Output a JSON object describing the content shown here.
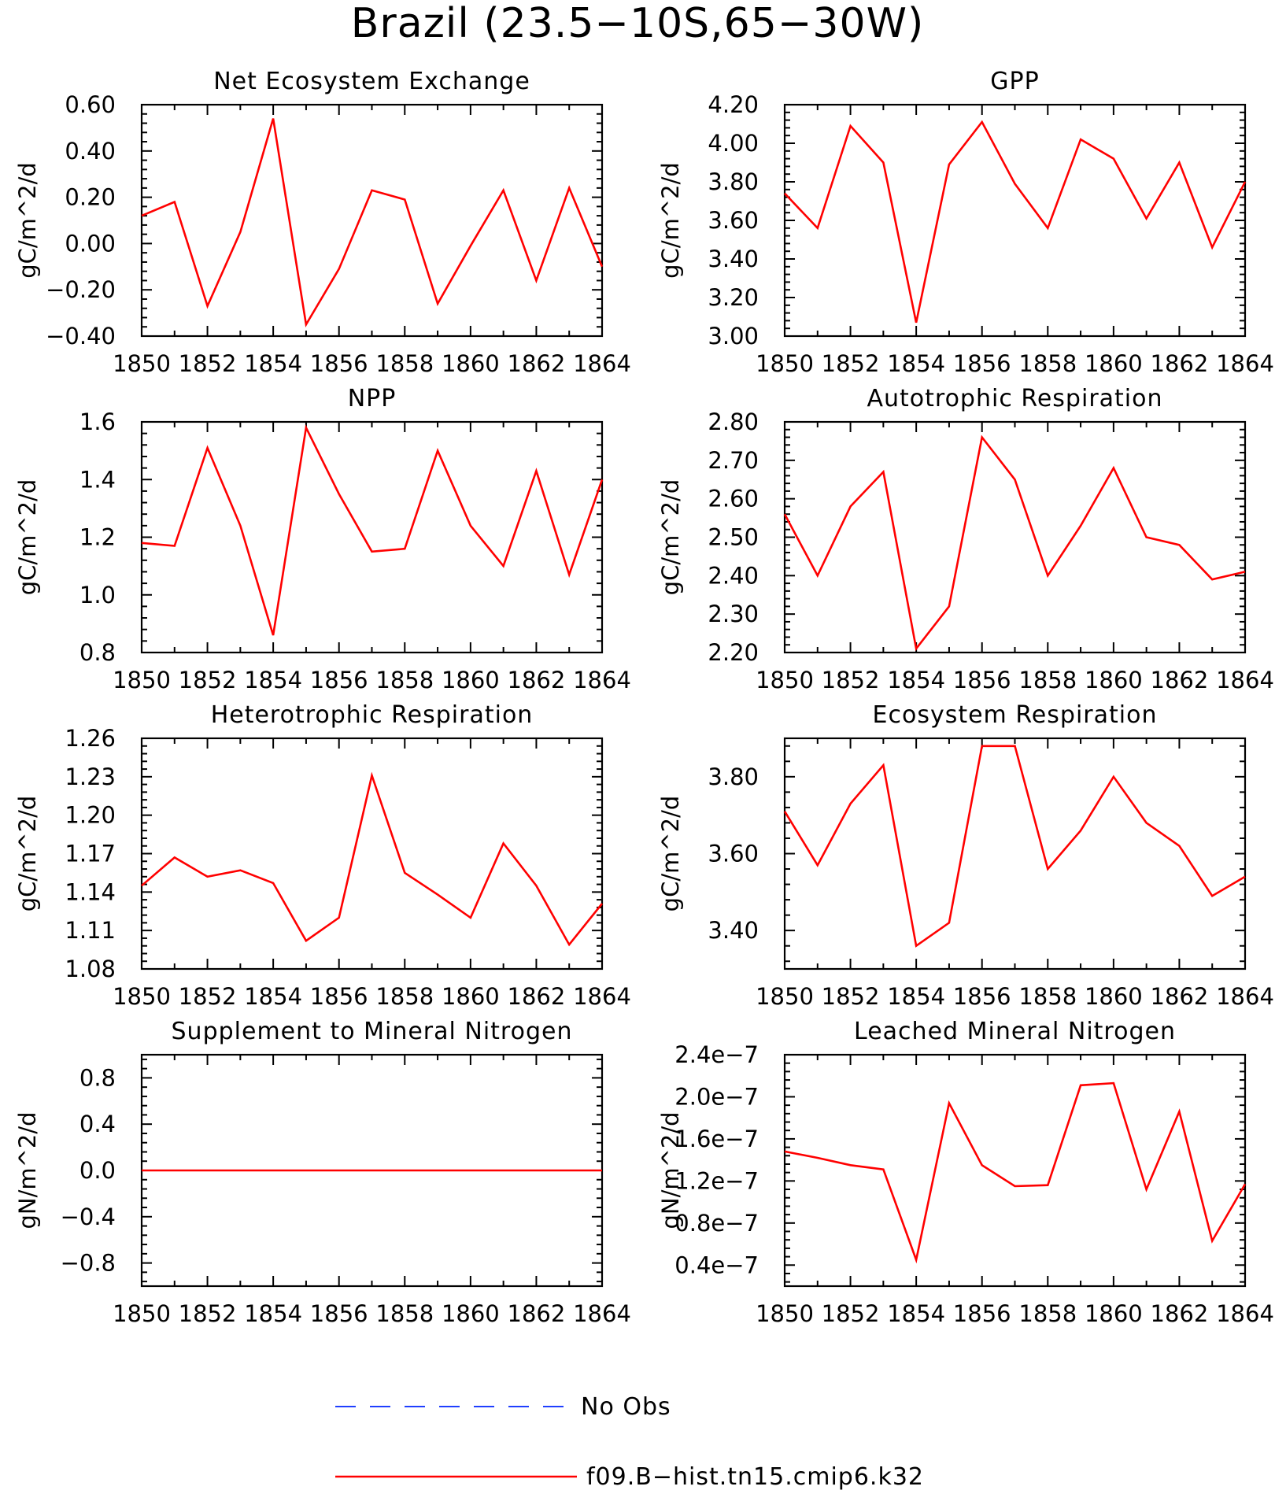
{
  "title": "Brazil (23.5−10S,65−30W)",
  "legend": {
    "obs_label": "No Obs",
    "model_label": "f09.B−hist.tn15.cmip6.k32",
    "obs_color": "#1f3fff",
    "model_color": "#ff0000"
  },
  "chart_data": [
    {
      "type": "line",
      "title": "Net Ecosystem Exchange",
      "ylabel": "gC/m^2/d",
      "x": [
        1850,
        1851,
        1852,
        1853,
        1854,
        1855,
        1856,
        1857,
        1858,
        1859,
        1860,
        1861,
        1862,
        1863,
        1864
      ],
      "series": [
        {
          "name": "f09.B−hist.tn15.cmip6.k32",
          "values": [
            0.12,
            0.18,
            -0.27,
            0.05,
            0.54,
            -0.35,
            -0.11,
            0.23,
            0.19,
            -0.26,
            -0.01,
            0.23,
            -0.16,
            0.24,
            -0.1
          ]
        }
      ],
      "xlim": [
        1850,
        1864
      ],
      "ylim": [
        -0.4,
        0.6
      ],
      "xticks": [
        "1850",
        "1852",
        "1854",
        "1856",
        "1858",
        "1860",
        "1862",
        "1864"
      ],
      "yticks": [
        "−0.40",
        "−0.20",
        "0.00",
        "0.20",
        "0.40",
        "0.60"
      ],
      "ytick_values": [
        -0.4,
        -0.2,
        0.0,
        0.2,
        0.4,
        0.6
      ]
    },
    {
      "type": "line",
      "title": "GPP",
      "ylabel": "gC/m^2/d",
      "x": [
        1850,
        1851,
        1852,
        1853,
        1854,
        1855,
        1856,
        1857,
        1858,
        1859,
        1860,
        1861,
        1862,
        1863,
        1864
      ],
      "series": [
        {
          "name": "f09.B−hist.tn15.cmip6.k32",
          "values": [
            3.74,
            3.56,
            4.09,
            3.9,
            3.07,
            3.89,
            4.11,
            3.79,
            3.56,
            4.02,
            3.92,
            3.61,
            3.9,
            3.46,
            3.8
          ]
        }
      ],
      "xlim": [
        1850,
        1864
      ],
      "ylim": [
        3.0,
        4.2
      ],
      "xticks": [
        "1850",
        "1852",
        "1854",
        "1856",
        "1858",
        "1860",
        "1862",
        "1864"
      ],
      "yticks": [
        "3.00",
        "3.20",
        "3.40",
        "3.60",
        "3.80",
        "4.00",
        "4.20"
      ],
      "ytick_values": [
        3.0,
        3.2,
        3.4,
        3.6,
        3.8,
        4.0,
        4.2
      ]
    },
    {
      "type": "line",
      "title": "NPP",
      "ylabel": "gC/m^2/d",
      "x": [
        1850,
        1851,
        1852,
        1853,
        1854,
        1855,
        1856,
        1857,
        1858,
        1859,
        1860,
        1861,
        1862,
        1863,
        1864
      ],
      "series": [
        {
          "name": "f09.B−hist.tn15.cmip6.k32",
          "values": [
            1.18,
            1.17,
            1.51,
            1.24,
            0.86,
            1.58,
            1.35,
            1.15,
            1.16,
            1.5,
            1.24,
            1.1,
            1.43,
            1.07,
            1.4
          ]
        }
      ],
      "xlim": [
        1850,
        1864
      ],
      "ylim": [
        0.8,
        1.6
      ],
      "xticks": [
        "1850",
        "1852",
        "1854",
        "1856",
        "1858",
        "1860",
        "1862",
        "1864"
      ],
      "yticks": [
        "0.8",
        "1.0",
        "1.2",
        "1.4",
        "1.6"
      ],
      "ytick_values": [
        0.8,
        1.0,
        1.2,
        1.4,
        1.6
      ]
    },
    {
      "type": "line",
      "title": "Autotrophic Respiration",
      "ylabel": "gC/m^2/d",
      "x": [
        1850,
        1851,
        1852,
        1853,
        1854,
        1855,
        1856,
        1857,
        1858,
        1859,
        1860,
        1861,
        1862,
        1863,
        1864
      ],
      "series": [
        {
          "name": "f09.B−hist.tn15.cmip6.k32",
          "values": [
            2.56,
            2.4,
            2.58,
            2.67,
            2.21,
            2.32,
            2.76,
            2.65,
            2.4,
            2.53,
            2.68,
            2.5,
            2.48,
            2.39,
            2.41
          ]
        }
      ],
      "xlim": [
        1850,
        1864
      ],
      "ylim": [
        2.2,
        2.8
      ],
      "xticks": [
        "1850",
        "1852",
        "1854",
        "1856",
        "1858",
        "1860",
        "1862",
        "1864"
      ],
      "yticks": [
        "2.20",
        "2.30",
        "2.40",
        "2.50",
        "2.60",
        "2.70",
        "2.80"
      ],
      "ytick_values": [
        2.2,
        2.3,
        2.4,
        2.5,
        2.6,
        2.7,
        2.8
      ]
    },
    {
      "type": "line",
      "title": "Heterotrophic Respiration",
      "ylabel": "gC/m^2/d",
      "x": [
        1850,
        1851,
        1852,
        1853,
        1854,
        1855,
        1856,
        1857,
        1858,
        1859,
        1860,
        1861,
        1862,
        1863,
        1864
      ],
      "series": [
        {
          "name": "f09.B−hist.tn15.cmip6.k32",
          "values": [
            1.145,
            1.167,
            1.152,
            1.157,
            1.147,
            1.102,
            1.12,
            1.231,
            1.155,
            1.138,
            1.12,
            1.178,
            1.145,
            1.099,
            1.131
          ]
        }
      ],
      "xlim": [
        1850,
        1864
      ],
      "ylim": [
        1.08,
        1.26
      ],
      "xticks": [
        "1850",
        "1852",
        "1854",
        "1856",
        "1858",
        "1860",
        "1862",
        "1864"
      ],
      "yticks": [
        "1.08",
        "1.11",
        "1.14",
        "1.17",
        "1.20",
        "1.23",
        "1.26"
      ],
      "ytick_values": [
        1.08,
        1.11,
        1.14,
        1.17,
        1.2,
        1.23,
        1.26
      ]
    },
    {
      "type": "line",
      "title": "Ecosystem Respiration",
      "ylabel": "gC/m^2/d",
      "x": [
        1850,
        1851,
        1852,
        1853,
        1854,
        1855,
        1856,
        1857,
        1858,
        1859,
        1860,
        1861,
        1862,
        1863,
        1864
      ],
      "series": [
        {
          "name": "f09.B−hist.tn15.cmip6.k32",
          "values": [
            3.71,
            3.57,
            3.73,
            3.83,
            3.36,
            3.42,
            3.88,
            3.88,
            3.56,
            3.66,
            3.8,
            3.68,
            3.62,
            3.49,
            3.54
          ]
        }
      ],
      "xlim": [
        1850,
        1864
      ],
      "ylim": [
        3.3,
        3.9
      ],
      "xticks": [
        "1850",
        "1852",
        "1854",
        "1856",
        "1858",
        "1860",
        "1862",
        "1864"
      ],
      "yticks": [
        "3.40",
        "3.60",
        "3.80"
      ],
      "ytick_values": [
        3.4,
        3.6,
        3.8
      ]
    },
    {
      "type": "line",
      "title": "Supplement to Mineral Nitrogen",
      "ylabel": "gN/m^2/d",
      "x": [
        1850,
        1851,
        1852,
        1853,
        1854,
        1855,
        1856,
        1857,
        1858,
        1859,
        1860,
        1861,
        1862,
        1863,
        1864
      ],
      "series": [
        {
          "name": "f09.B−hist.tn15.cmip6.k32",
          "values": [
            0,
            0,
            0,
            0,
            0,
            0,
            0,
            0,
            0,
            0,
            0,
            0,
            0,
            0,
            0
          ]
        }
      ],
      "xlim": [
        1850,
        1864
      ],
      "ylim": [
        -1.0,
        1.0
      ],
      "xticks": [
        "1850",
        "1852",
        "1854",
        "1856",
        "1858",
        "1860",
        "1862",
        "1864"
      ],
      "yticks": [
        "−0.8",
        "−0.4",
        "0.0",
        "0.4",
        "0.8"
      ],
      "ytick_values": [
        -0.8,
        -0.4,
        0.0,
        0.4,
        0.8
      ]
    },
    {
      "type": "line",
      "title": "Leached Mineral Nitrogen",
      "ylabel": "gN/m^2/d",
      "x": [
        1850,
        1851,
        1852,
        1853,
        1854,
        1855,
        1856,
        1857,
        1858,
        1859,
        1860,
        1861,
        1862,
        1863,
        1864
      ],
      "series": [
        {
          "name": "f09.B−hist.tn15.cmip6.k32",
          "values": [
            1.48e-07,
            1.42e-07,
            1.35e-07,
            1.31e-07,
            4.5e-08,
            1.94e-07,
            1.35e-07,
            1.15e-07,
            1.16e-07,
            2.11e-07,
            2.13e-07,
            1.12e-07,
            1.86e-07,
            6.3e-08,
            1.17e-07
          ]
        }
      ],
      "xlim": [
        1850,
        1864
      ],
      "ylim": [
        2e-08,
        2.4e-07
      ],
      "xticks": [
        "1850",
        "1852",
        "1854",
        "1856",
        "1858",
        "1860",
        "1862",
        "1864"
      ],
      "yticks": [
        "0.4e−7",
        "0.8e−7",
        "1.2e−7",
        "1.6e−7",
        "2.0e−7",
        "2.4e−7"
      ],
      "ytick_values": [
        4e-08,
        8e-08,
        1.2e-07,
        1.6e-07,
        2e-07,
        2.4e-07
      ]
    }
  ]
}
